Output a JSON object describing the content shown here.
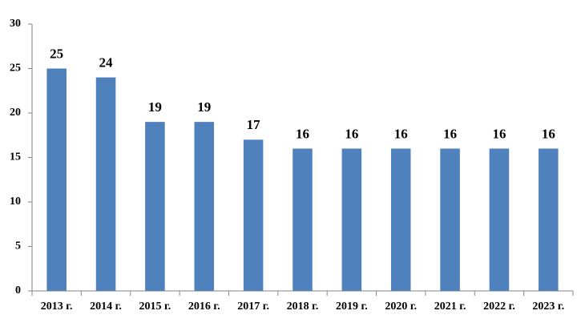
{
  "chart_data": {
    "type": "bar",
    "categories": [
      "2013 г.",
      "2014 г.",
      "2015 г.",
      "2016 г.",
      "2017 г.",
      "2018 г.",
      "2019 г.",
      "2020 г.",
      "2021 г.",
      "2022 г.",
      "2023 г."
    ],
    "values": [
      25,
      24,
      19,
      19,
      17,
      16,
      16,
      16,
      16,
      16,
      16
    ],
    "color": "#4f81bd",
    "ylim": [
      0,
      30
    ],
    "yticks": [
      0,
      5,
      10,
      15,
      20,
      25,
      30
    ],
    "grid": false
  }
}
